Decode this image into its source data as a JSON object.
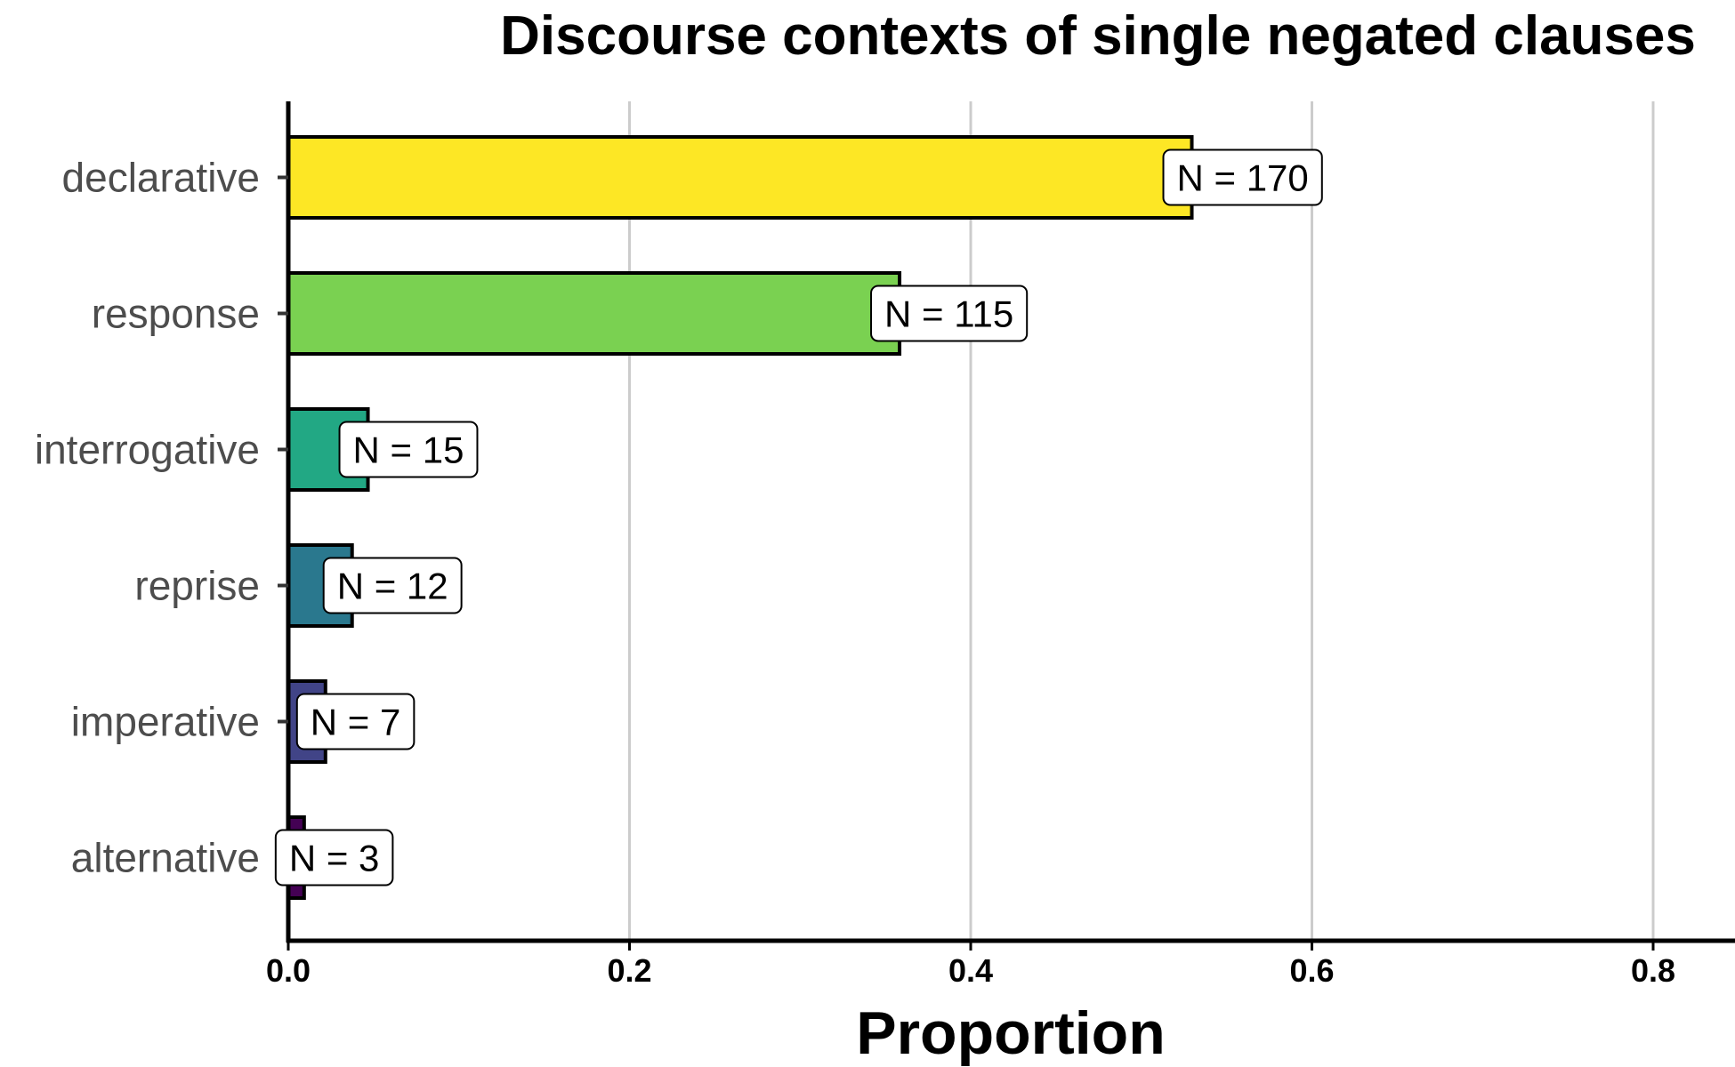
{
  "chart_data": {
    "type": "bar",
    "orientation": "horizontal",
    "title": "Discourse contexts of single negated clauses",
    "xlabel": "Proportion",
    "ylabel": "",
    "xlim": [
      0,
      0.85
    ],
    "x_ticks": [
      "0.0",
      "0.2",
      "0.4",
      "0.6",
      "0.8"
    ],
    "x_tick_values": [
      0,
      0.2,
      0.4,
      0.6,
      0.8
    ],
    "grid": "vertical major gridlines",
    "legend": "none",
    "categories": [
      "declarative",
      "response",
      "interrogative",
      "reprise",
      "imperative",
      "alternative"
    ],
    "values": [
      0.5296,
      0.3583,
      0.0467,
      0.0374,
      0.0218,
      0.0093
    ],
    "counts": [
      170,
      115,
      15,
      12,
      7,
      3
    ],
    "data_labels": [
      "N = 170",
      "N = 115",
      "N = 15",
      "N = 12",
      "N = 7",
      "N = 3"
    ],
    "colors": [
      "#fde725",
      "#7ad151",
      "#22a884",
      "#2a788e",
      "#414487",
      "#440154"
    ]
  }
}
